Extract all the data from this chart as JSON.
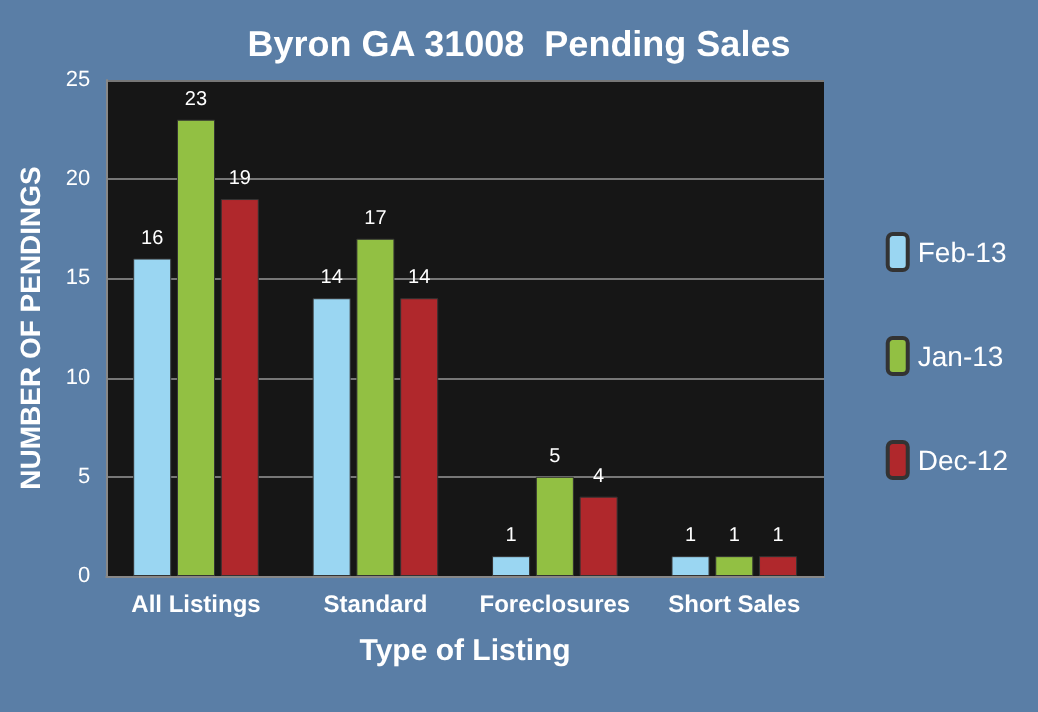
{
  "chart_data": {
    "type": "bar",
    "title": "Byron GA 31008  Pending Sales",
    "xlabel": "Type of Listing",
    "ylabel": "NUMBER OF PENDINGS",
    "categories": [
      "All Listings",
      "Standard",
      "Foreclosures",
      "Short Sales"
    ],
    "series": [
      {
        "name": "Feb-13",
        "color": "#9ad6f2",
        "values": [
          16,
          14,
          1,
          1
        ]
      },
      {
        "name": "Jan-13",
        "color": "#92c043",
        "values": [
          23,
          17,
          5,
          1
        ]
      },
      {
        "name": "Dec-12",
        "color": "#b0282c",
        "values": [
          19,
          14,
          4,
          1
        ]
      }
    ],
    "ylim": [
      0,
      25
    ],
    "yticks": [
      0,
      5,
      10,
      15,
      20,
      25
    ],
    "grid": "y",
    "legend": "right",
    "data_labels": true
  }
}
